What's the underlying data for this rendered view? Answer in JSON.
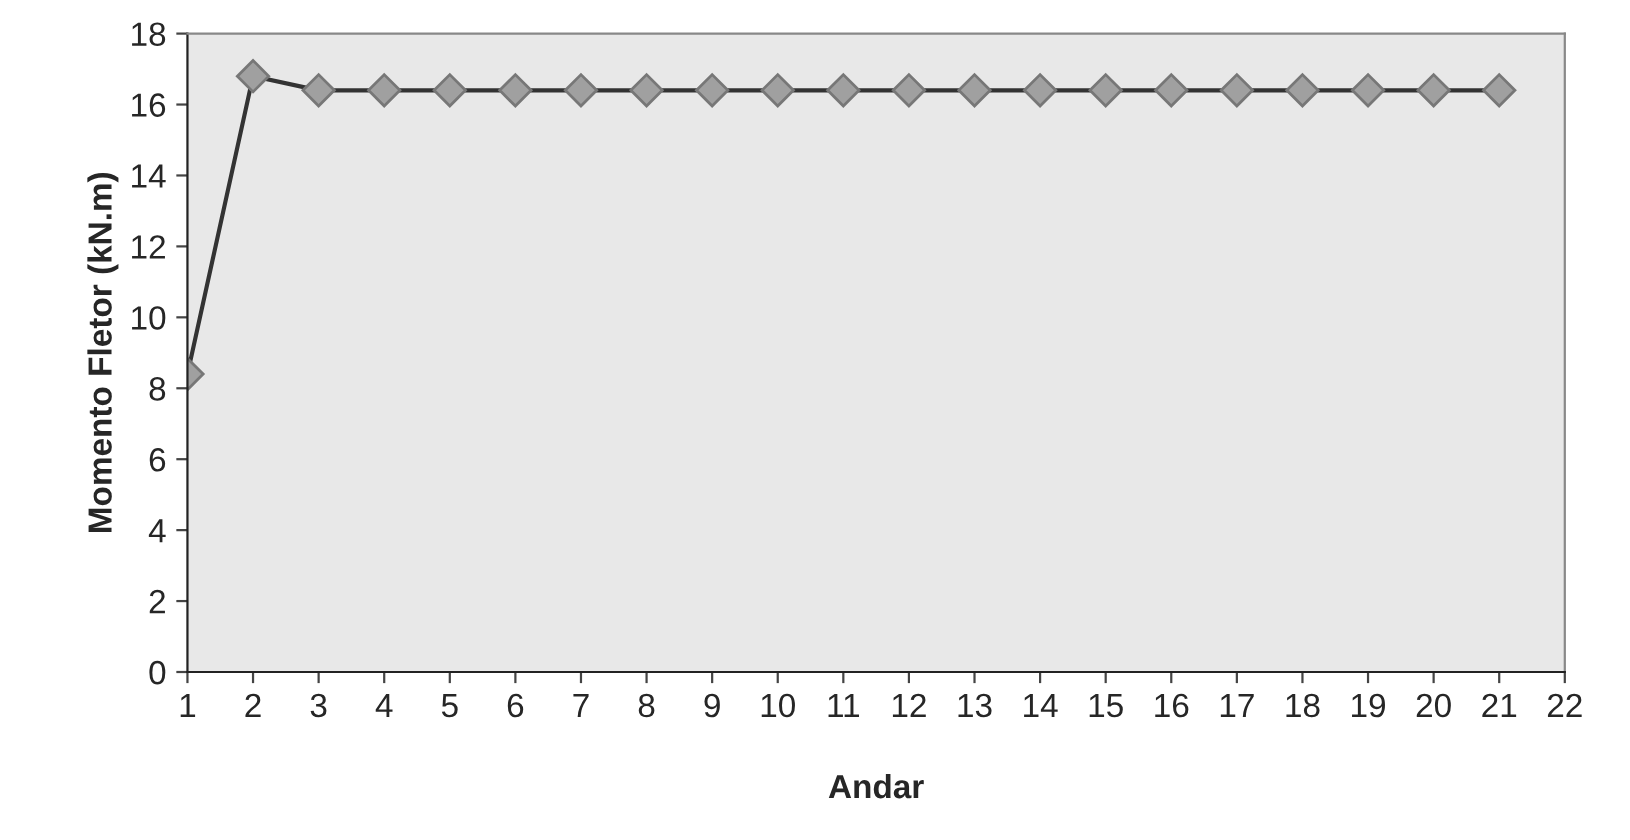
{
  "chart_data": {
    "type": "line",
    "xlabel": "Andar",
    "ylabel": "Momento Fletor (kN.m)",
    "x": [
      1,
      2,
      3,
      4,
      5,
      6,
      7,
      8,
      9,
      10,
      11,
      12,
      13,
      14,
      15,
      16,
      17,
      18,
      19,
      20,
      21
    ],
    "series": [
      {
        "color": "#a0a0a0",
        "values": [
          8.4,
          16.8,
          16.4,
          16.4,
          16.4,
          16.4,
          16.4,
          16.4,
          16.4,
          16.4,
          16.4,
          16.4,
          16.4,
          16.4,
          16.4,
          16.4,
          16.4,
          16.4,
          16.4,
          16.4,
          16.4
        ]
      }
    ],
    "xlim": [
      1,
      22
    ],
    "xticks": [
      1,
      2,
      3,
      4,
      5,
      6,
      7,
      8,
      9,
      10,
      11,
      12,
      13,
      14,
      15,
      16,
      17,
      18,
      19,
      20,
      21,
      22
    ],
    "ylim": [
      0,
      18
    ],
    "yticks": [
      0,
      2,
      4,
      6,
      8,
      10,
      12,
      14,
      16,
      18
    ],
    "marker": "diamond",
    "line_style": "solid",
    "grid": false,
    "legend": false
  }
}
